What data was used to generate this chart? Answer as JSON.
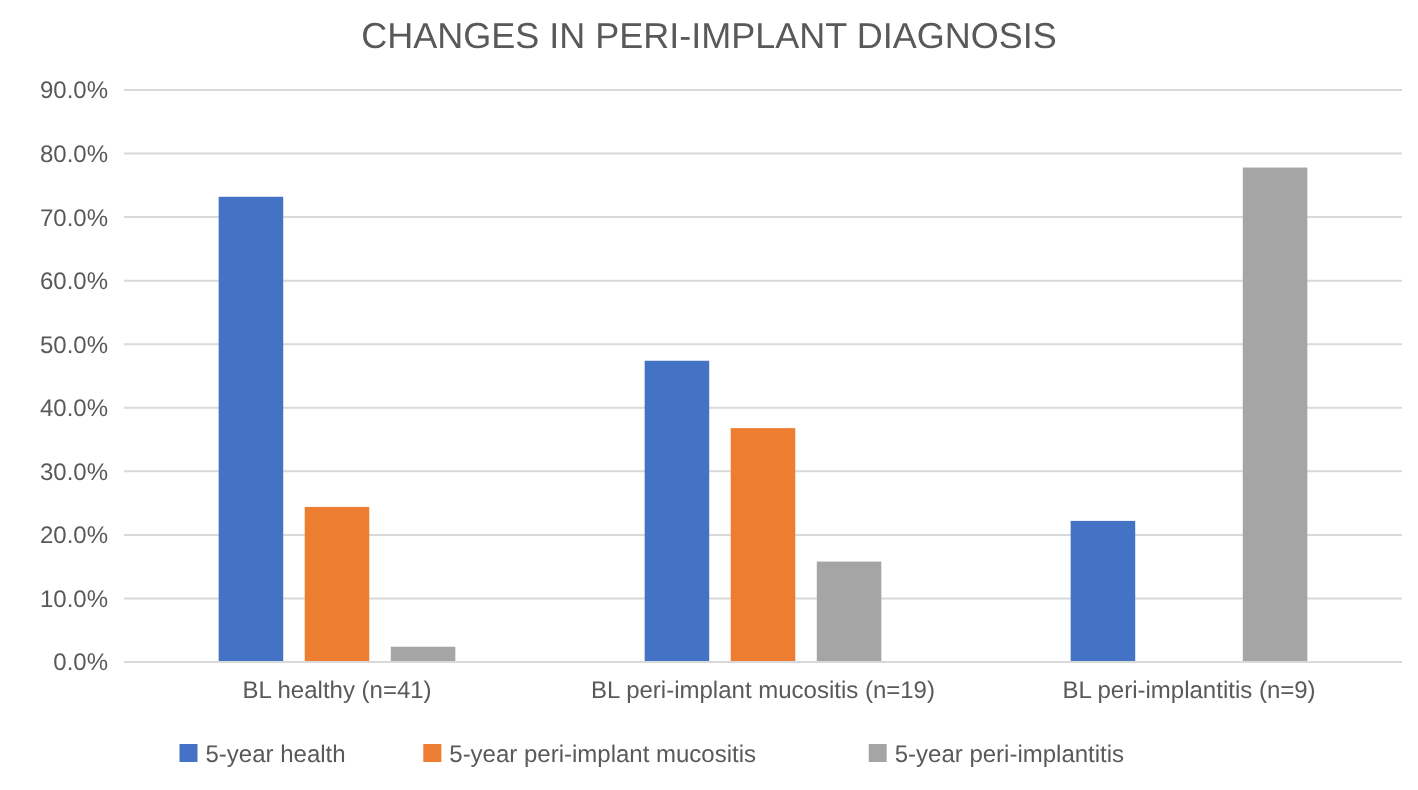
{
  "chart_data": {
    "type": "bar",
    "title": "CHANGES IN PERI-IMPLANT DIAGNOSIS",
    "categories": [
      "BL healthy (n=41)",
      "BL peri-implant mucositis (n=19)",
      "BL peri-implantitis (n=9)"
    ],
    "series": [
      {
        "name": "5-year health",
        "color": "#4472c4",
        "values": [
          73.2,
          47.4,
          22.2
        ]
      },
      {
        "name": "5-year peri-implant mucositis",
        "color": "#ed7d31",
        "values": [
          24.4,
          36.8,
          0
        ]
      },
      {
        "name": "5-year peri-implantitis",
        "color": "#a5a5a5",
        "values": [
          2.4,
          15.8,
          77.8
        ]
      }
    ],
    "ylim": [
      0,
      90
    ],
    "yticks": [
      {
        "value": 0,
        "label": "0.0%"
      },
      {
        "value": 10,
        "label": "10.0%"
      },
      {
        "value": 20,
        "label": "20.0%"
      },
      {
        "value": 30,
        "label": "30.0%"
      },
      {
        "value": 40,
        "label": "40.0%"
      },
      {
        "value": 50,
        "label": "50.0%"
      },
      {
        "value": 60,
        "label": "60.0%"
      },
      {
        "value": 70,
        "label": "70.0%"
      },
      {
        "value": 80,
        "label": "80.0%"
      },
      {
        "value": 90,
        "label": "90.0%"
      }
    ],
    "grid": "y",
    "legend": "bottom"
  }
}
